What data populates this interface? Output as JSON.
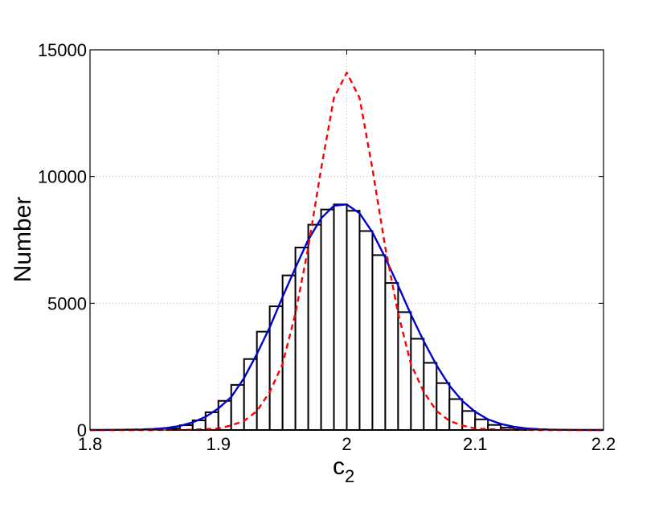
{
  "chart_data": {
    "type": "bar",
    "title": "",
    "xlabel": "c",
    "xlabel_subscript": "2",
    "ylabel": "Number",
    "xlim": [
      1.8,
      2.2
    ],
    "ylim": [
      0,
      15000
    ],
    "grid": true,
    "x_ticks": [
      1.8,
      1.9,
      2.0,
      2.1,
      2.2
    ],
    "x_tick_labels": [
      "1.8",
      "1.9",
      "2",
      "2.1",
      "2.2"
    ],
    "y_ticks": [
      0,
      5000,
      10000,
      15000
    ],
    "y_tick_labels": [
      "0",
      "5000",
      "10000",
      "15000"
    ],
    "histogram": {
      "bin_width": 0.01,
      "bin_centers": [
        1.865,
        1.875,
        1.885,
        1.895,
        1.905,
        1.915,
        1.925,
        1.935,
        1.945,
        1.955,
        1.965,
        1.975,
        1.985,
        1.995,
        2.005,
        2.015,
        2.025,
        2.035,
        2.045,
        2.055,
        2.065,
        2.075,
        2.085,
        2.095,
        2.105,
        2.115,
        2.125,
        2.135
      ],
      "counts": [
        60,
        190,
        380,
        700,
        1150,
        1780,
        2800,
        3880,
        4880,
        6100,
        7200,
        8100,
        8700,
        8900,
        8650,
        7850,
        6900,
        5800,
        4650,
        3600,
        2650,
        1850,
        1220,
        750,
        420,
        200,
        90,
        30
      ],
      "fill": "#ffffff",
      "stroke": "#000000"
    },
    "series": [
      {
        "style": "solid",
        "color": "#0000cc",
        "x": [
          1.8,
          1.82,
          1.84,
          1.85,
          1.86,
          1.87,
          1.88,
          1.89,
          1.9,
          1.91,
          1.92,
          1.93,
          1.94,
          1.95,
          1.96,
          1.97,
          1.98,
          1.99,
          2.0,
          2.01,
          2.02,
          2.03,
          2.04,
          2.05,
          2.06,
          2.07,
          2.08,
          2.09,
          2.1,
          2.11,
          2.12,
          2.13,
          2.14,
          2.15,
          2.16,
          2.18,
          2.2
        ],
        "y": [
          0,
          5,
          20,
          40,
          80,
          160,
          300,
          520,
          850,
          1300,
          2050,
          3000,
          4050,
          5250,
          6400,
          7500,
          8350,
          8850,
          8900,
          8550,
          7800,
          6800,
          5700,
          4550,
          3500,
          2550,
          1750,
          1150,
          720,
          420,
          240,
          130,
          60,
          30,
          15,
          3,
          0
        ]
      },
      {
        "style": "dashed",
        "color": "#ff0000",
        "x": [
          1.8,
          1.85,
          1.88,
          1.9,
          1.91,
          1.92,
          1.93,
          1.94,
          1.95,
          1.96,
          1.97,
          1.98,
          1.99,
          2.0,
          2.01,
          2.02,
          2.03,
          2.04,
          2.05,
          2.06,
          2.07,
          2.08,
          2.09,
          2.1,
          2.12,
          2.15,
          2.2
        ],
        "y": [
          0,
          0,
          10,
          60,
          180,
          360,
          750,
          1500,
          2600,
          4600,
          7200,
          10300,
          13100,
          14100,
          13100,
          10300,
          7200,
          4600,
          2600,
          1500,
          750,
          360,
          180,
          60,
          10,
          0,
          0
        ]
      }
    ]
  }
}
